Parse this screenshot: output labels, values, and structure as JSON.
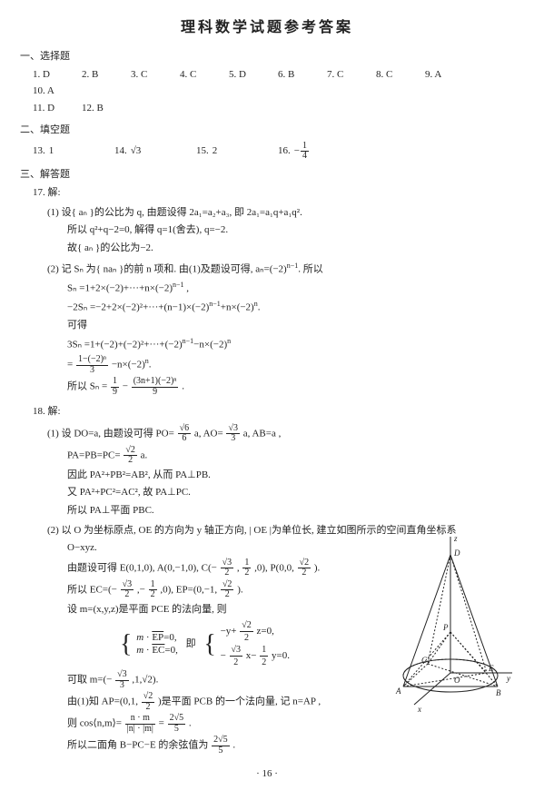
{
  "title": "理科数学试题参考答案",
  "sections": {
    "mc": "一、选择题",
    "fb": "二、填空题",
    "fr": "三、解答题"
  },
  "mc": {
    "row1": [
      "1. D",
      "2. B",
      "3. C",
      "4. C",
      "5. D",
      "6. B",
      "7. C",
      "8. C",
      "9. A",
      "10. A"
    ],
    "row2": [
      "11. D",
      "12. B"
    ]
  },
  "fb": {
    "items": [
      {
        "label": "13.",
        "value": "1"
      },
      {
        "label": "14.",
        "value": "√3"
      },
      {
        "label": "15.",
        "value": "2"
      },
      {
        "label": "16.",
        "value_prefix": "−",
        "num": "1",
        "den": "4"
      }
    ]
  },
  "q17": {
    "header": "17. 解:",
    "p1": "(1) 设{ aₙ }的公比为 q, 由题设得 2a₁=a₂+a₃, 即 2a₁=a₁q+a₁q².",
    "l1": "所以 q²+q−2=0, 解得 q=1(舍去), q=−2.",
    "l2": "故{ aₙ }的公比为−2.",
    "p2a": "(2) 记 Sₙ 为{ naₙ }的前 n 项和. 由(1)及题设可得, aₙ=(−2)",
    "p2b": ". 所以",
    "l3a": "Sₙ =1+2×(−2)+···+n×(−2)",
    "l3b": " ,",
    "l4a": "−2Sₙ =−2+2×(−2)²+···+(n−1)×(−2)",
    "l4b": "+n×(−2)",
    "l4c": ".",
    "l5": "可得",
    "l6a": "3Sₙ =1+(−2)+(−2)²+···+(−2)",
    "l6b": "−n×(−2)",
    "l6c": "",
    "l7pre": "=",
    "l7num": "1−(−2)ⁿ",
    "l7den": "3",
    "l7mid": "−n×(−2)",
    "l7sup": "n",
    "l7end": ".",
    "l8pre": "所以 Sₙ =",
    "l8n1": "1",
    "l8d1": "9",
    "l8mid": "−",
    "l8n2": "(3n+1)(−2)ⁿ",
    "l8d2": "9",
    "l8end": "."
  },
  "q18": {
    "header": "18. 解:",
    "p1": "(1) 设 DO=a, 由题设可得 PO=",
    "p1n1": "√6",
    "p1d1": "6",
    "p1m1": "a, AO=",
    "p1n2": "√3",
    "p1d2": "3",
    "p1m2": "a, AB=a ,",
    "l2": "PA=PB=PC=",
    "l2n": "√2",
    "l2d": "2",
    "l2end": "a.",
    "l3": "因此 PA²+PB²=AB², 从而 PA⊥PB.",
    "l4": "又 PA²+PC²=AC², 故 PA⊥PC.",
    "l5": "所以 PA⊥平面 PBC.",
    "p2": "(2) 以 O 为坐标原点, OE 的方向为 y 轴正方向, | OE |为单位长, 建立如图所示的空间直角坐标系",
    "p2b": "O−xyz.",
    "l6a": "由题设可得 E(0,1,0), A(0,−1,0), C(−",
    "l6n1": "√3",
    "l6d1": "2",
    "l6m1": ",",
    "l6n2": "1",
    "l6d2": "2",
    "l6m2": ",0), P(0,0,",
    "l6n3": "√2",
    "l6d3": "2",
    "l6end": ").",
    "l7a": "所以 EC=(−",
    "l7n1": "√3",
    "l7d1": "2",
    "l7m1": ",−",
    "l7n2": "1",
    "l7d2": "2",
    "l7m2": ",0), EP=(0,−1,",
    "l7n3": "√2",
    "l7d3": "2",
    "l7end": ").",
    "l8": "设 m=(x,y,z)是平面 PCE 的法向量, 则",
    "eq1a": "m · EP=0,",
    "eq1b": "m · EC=0,",
    "eq_mid": "即",
    "eq2a_pre": "−y+",
    "eq2a_num": "√2",
    "eq2a_den": "2",
    "eq2a_post": "z=0,",
    "eq2b_pre": "−",
    "eq2b_n1": "√3",
    "eq2b_d1": "2",
    "eq2b_m1": "x−",
    "eq2b_n2": "1",
    "eq2b_d2": "2",
    "eq2b_post": "y=0.",
    "l9a": "可取 m=(−",
    "l9n": "√3",
    "l9d": "3",
    "l9end": ",1,√2).",
    "l10a": "由(1)知 AP=(0,1,",
    "l10n": "√2",
    "l10d": "2",
    "l10end": ")是平面 PCB 的一个法向量, 记 n=AP ,",
    "l11a": "则 cos⟨n,m⟩=",
    "l11n1": "n · m",
    "l11d1": "|n| · |m|",
    "l11mid": "=",
    "l11n2": "2√5",
    "l11d2": "5",
    "l11end": ".",
    "l12a": "所以二面角 B−PC−E 的余弦值为",
    "l12n": "2√5",
    "l12d": "5",
    "l12end": "."
  },
  "footer": "· 16 ·",
  "figure": {
    "stroke": "#222222",
    "labels": {
      "z": "z",
      "D": "D",
      "P": "P",
      "O": "O",
      "A": "A",
      "B": "B",
      "C": "C",
      "E": "E",
      "x": "x",
      "y": "y"
    }
  }
}
